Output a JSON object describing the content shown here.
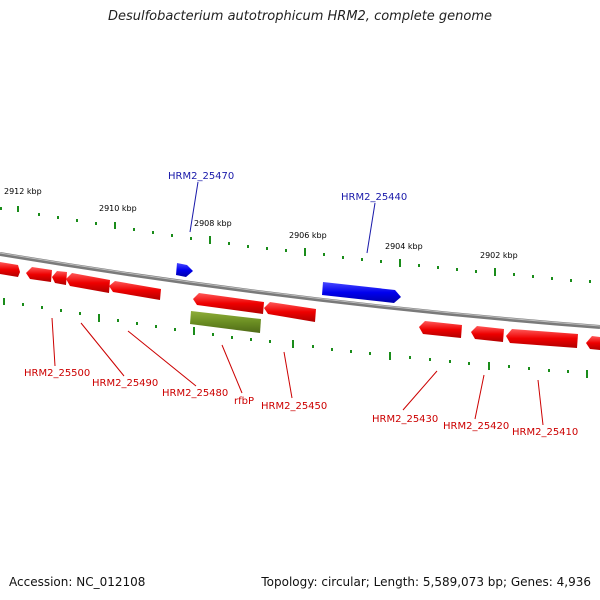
{
  "title": "Desulfobacterium autotrophicum HRM2, complete genome",
  "footer": {
    "accession": "Accession: NC_012108",
    "topology": "Topology: circular; Length: 5,589,073 bp; Genes: 4,936"
  },
  "ruler": {
    "unit": "kbp",
    "ticks": [
      {
        "label": "2912 kbp"
      },
      {
        "label": "2910 kbp"
      },
      {
        "label": "2908 kbp"
      },
      {
        "label": "2906 kbp"
      },
      {
        "label": "2904 kbp"
      },
      {
        "label": "2902 kbp"
      }
    ]
  },
  "colors": {
    "forward_gene": "#0000ee",
    "reverse_gene": "#ee0000",
    "rfbp_gene": "#6b8e23",
    "tick": "#1a8c1a",
    "backbone": "#808080",
    "label_blue": "#1a1aaa",
    "label_red": "#cc0000"
  },
  "genes": {
    "forward": [
      {
        "name": "HRM2_25470"
      },
      {
        "name": "HRM2_25440"
      }
    ],
    "reverse": [
      {
        "name": "HRM2_25500"
      },
      {
        "name": "HRM2_25490"
      },
      {
        "name": "HRM2_25480"
      },
      {
        "name": "rfbP"
      },
      {
        "name": "HRM2_25450"
      },
      {
        "name": "HRM2_25430"
      },
      {
        "name": "HRM2_25420"
      },
      {
        "name": "HRM2_25410"
      }
    ]
  }
}
